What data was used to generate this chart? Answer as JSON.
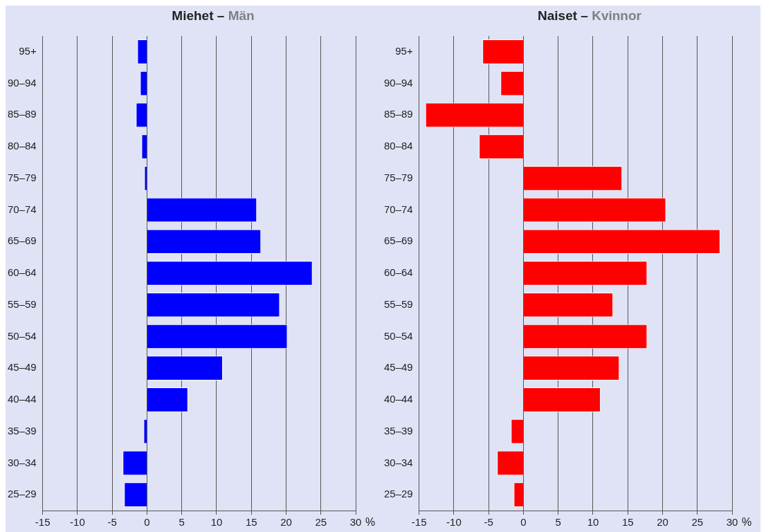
{
  "chart_data": [
    {
      "type": "bar",
      "orientation": "horizontal",
      "title": "Miehet – Män",
      "xlabel": "%",
      "categories": [
        "95+",
        "90–94",
        "85–89",
        "80–84",
        "75–79",
        "70–74",
        "65–69",
        "60–64",
        "55–59",
        "50–54",
        "45–49",
        "40–44",
        "35–39",
        "30–34",
        "25–29"
      ],
      "values": [
        -1.4,
        -1.0,
        -1.6,
        -0.8,
        -0.4,
        15.8,
        16.4,
        23.8,
        19.1,
        20.2,
        10.9,
        5.9,
        -0.5,
        -3.5,
        -3.3
      ],
      "color": "#0000ff",
      "xlim": [
        -15,
        30
      ],
      "xticks": [
        -15,
        -10,
        -5,
        0,
        5,
        10,
        15,
        20,
        25,
        30
      ],
      "grid": "x",
      "legend": false
    },
    {
      "type": "bar",
      "orientation": "horizontal",
      "title": "Naiset – Kvinnor",
      "xlabel": "%",
      "categories": [
        "95+",
        "90–94",
        "85–89",
        "80–84",
        "75–79",
        "70–74",
        "65–69",
        "60–64",
        "55–59",
        "50–54",
        "45–49",
        "40–44",
        "35–39",
        "30–34",
        "25–29"
      ],
      "values": [
        -5.9,
        -3.3,
        -14.1,
        -6.4,
        14.2,
        20.5,
        28.3,
        17.8,
        12.9,
        17.8,
        13.8,
        11.1,
        -1.8,
        -3.8,
        -1.4
      ],
      "color": "#ff0000",
      "xlim": [
        -15,
        30
      ],
      "xticks": [
        -15,
        -10,
        -5,
        0,
        5,
        10,
        15,
        20,
        25,
        30
      ],
      "grid": "x",
      "legend": false
    }
  ]
}
